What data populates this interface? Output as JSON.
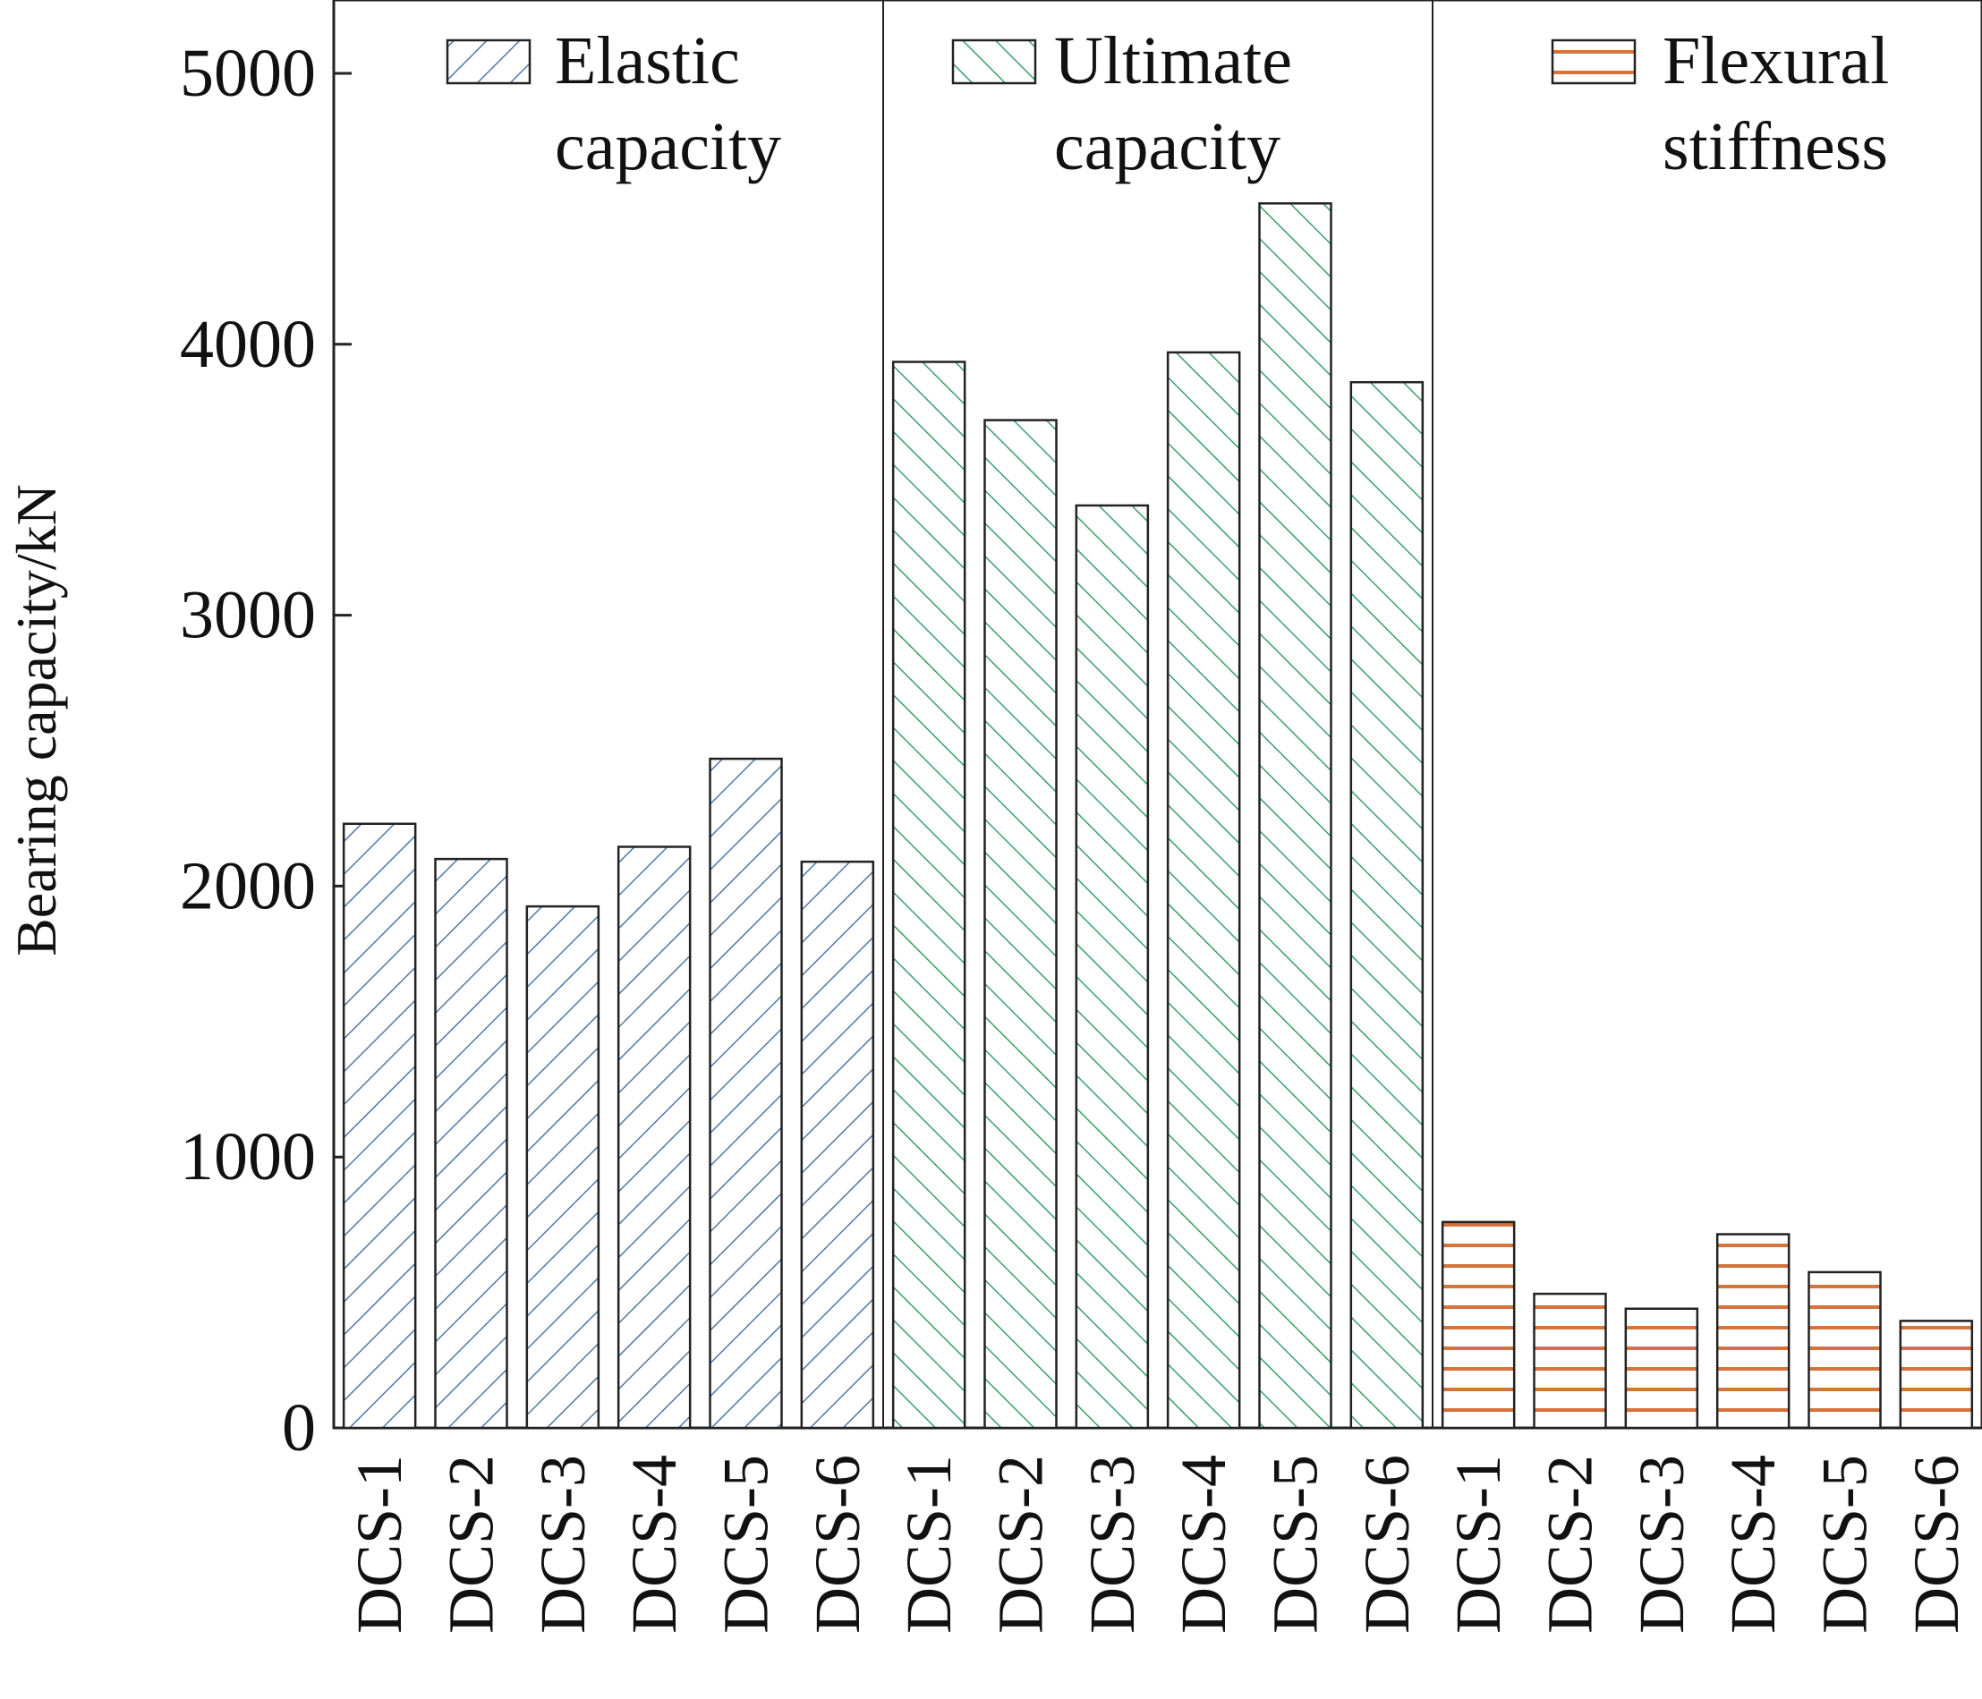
{
  "chart_data": {
    "type": "bar",
    "ylabel": "Bearing capacity/kN",
    "xlabel": "",
    "ylim": [
      0,
      5300
    ],
    "yticks": [
      0,
      1000,
      2000,
      3000,
      4000,
      5000
    ],
    "categories": [
      "DCS-1",
      "DCS-2",
      "DCS-3",
      "DCS-4",
      "DCS-5",
      "DCS-6"
    ],
    "legend_placement": "top of each panel",
    "grid": false,
    "series": [
      {
        "name_lines": [
          "Elastic",
          "capacity"
        ],
        "values": [
          2230,
          2100,
          1925,
          2145,
          2470,
          2090
        ],
        "color": "#4f79a6",
        "pattern": "forward-diagonal-hatch"
      },
      {
        "name_lines": [
          "Ultimate",
          "capacity"
        ],
        "values": [
          3935,
          3720,
          3405,
          3970,
          4520,
          3860
        ],
        "color": "#3aa06a",
        "pattern": "backward-diagonal-hatch"
      },
      {
        "name_lines": [
          "Flexural",
          "stiffness"
        ],
        "values": [
          760,
          495,
          440,
          715,
          575,
          395
        ],
        "color": "#d4733a",
        "pattern": "horizontal-stripes"
      }
    ]
  }
}
